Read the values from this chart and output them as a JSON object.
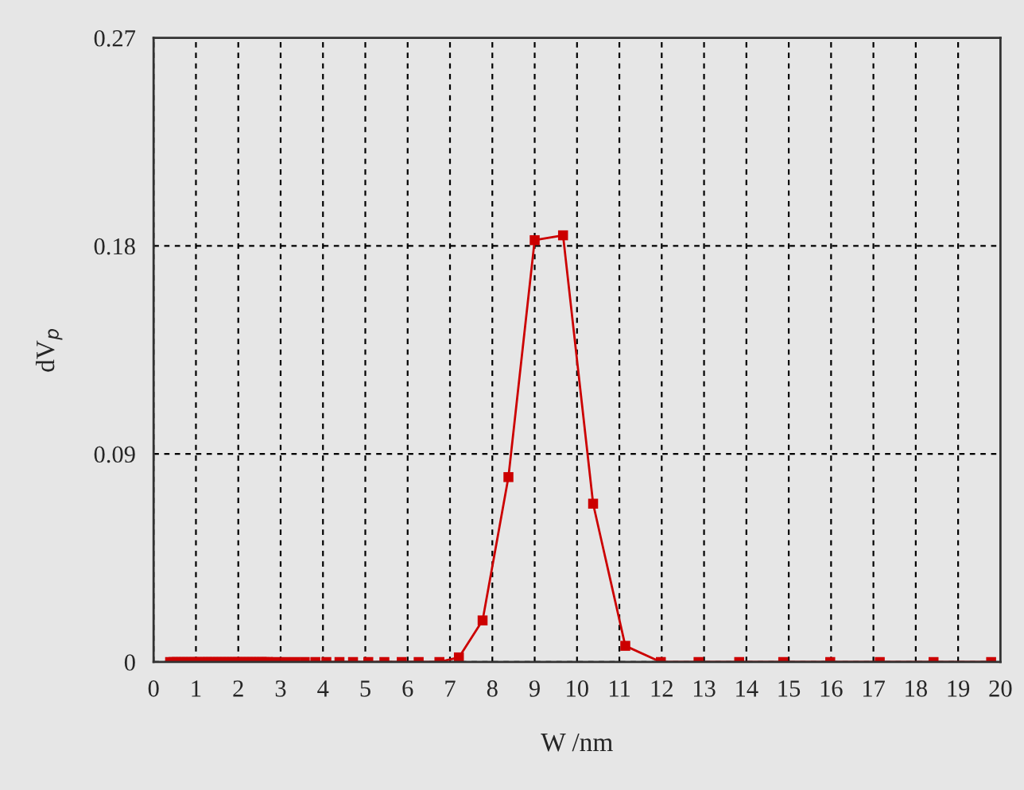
{
  "chart_data": {
    "type": "line",
    "xlabel": "W /nm",
    "ylabel": "dV$_{p}$",
    "xlim": [
      0,
      20
    ],
    "xticks": [
      0,
      1,
      2,
      3,
      4,
      5,
      6,
      7,
      8,
      9,
      10,
      11,
      12,
      13,
      14,
      15,
      16,
      17,
      18,
      19,
      20
    ],
    "ylim": [
      0,
      0.27
    ],
    "yticks": [
      {
        "value": 0,
        "label": "0"
      },
      0.09,
      0.18,
      0.27
    ],
    "grid": true,
    "marker": "square",
    "line_style": "solid",
    "series": [
      {
        "color": "#cc0000",
        "x": [
          0.39,
          0.47,
          0.55,
          0.63,
          0.71,
          0.79,
          0.87,
          0.95,
          1.03,
          1.11,
          1.19,
          1.27,
          1.35,
          1.43,
          1.51,
          1.59,
          1.67,
          1.75,
          1.83,
          1.91,
          1.99,
          2.07,
          2.15,
          2.23,
          2.31,
          2.39,
          2.47,
          2.55,
          2.63,
          2.7,
          2.88,
          3.11,
          3.34,
          3.57,
          3.82,
          4.08,
          4.39,
          4.71,
          5.07,
          5.45,
          5.86,
          6.26,
          6.75,
          7.21,
          7.77,
          8.38,
          9.0,
          9.67,
          10.38,
          11.14,
          11.98,
          12.87,
          13.83,
          14.87,
          15.98,
          17.15,
          18.42,
          19.78
        ],
        "values": [
          0,
          0,
          0,
          0,
          0,
          0,
          0,
          0,
          0,
          0,
          0,
          0,
          0,
          0,
          0,
          0,
          0,
          0,
          0,
          0,
          0,
          0,
          0,
          0,
          0,
          0,
          0,
          0,
          0,
          0,
          0,
          0,
          0,
          0,
          0,
          0,
          0,
          0,
          0,
          0,
          0,
          0,
          0,
          0.002,
          0.018,
          0.08,
          0.1825,
          0.1846,
          0.0685,
          0.007,
          0,
          0,
          0,
          0,
          0,
          0,
          0,
          0
        ]
      }
    ]
  }
}
